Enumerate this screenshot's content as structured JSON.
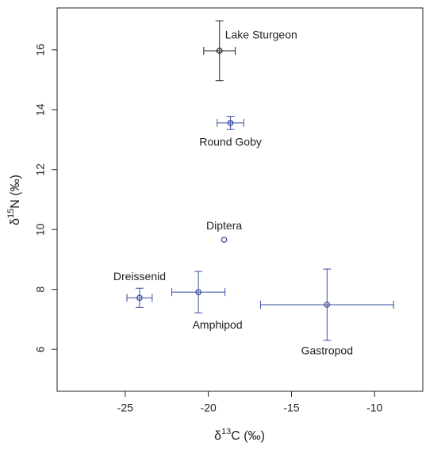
{
  "chart_data": {
    "type": "scatter",
    "x_label": [
      "δ",
      "13",
      "C (‰)"
    ],
    "y_label": [
      "δ",
      "15",
      "N (‰)"
    ],
    "xlim": [
      -29.1,
      -7.1
    ],
    "ylim": [
      4.6,
      17.4
    ],
    "xticks": [
      -25,
      -20,
      -15,
      -10
    ],
    "yticks": [
      6,
      8,
      10,
      12,
      14,
      16
    ],
    "points": [
      {
        "name": "Lake Sturgeon",
        "color": "#222222",
        "x": -19.33,
        "y": 15.97,
        "xerr": 0.95,
        "yerr": 1.0
      },
      {
        "name": "Round Goby",
        "color": "#3a4fa0",
        "x": -18.67,
        "y": 13.56,
        "xerr": 0.8,
        "yerr": 0.22
      },
      {
        "name": "Diptera",
        "color": "#3a4fa0",
        "x": -19.05,
        "y": 9.66,
        "xerr": null,
        "yerr": null
      },
      {
        "name": "Dreissenid",
        "color": "#3a4fa0",
        "x": -24.14,
        "y": 7.72,
        "xerr": 0.76,
        "yerr": 0.32
      },
      {
        "name": "Amphipod",
        "color": "#3a4fa0",
        "x": -20.6,
        "y": 7.91,
        "xerr": 1.6,
        "yerr": 0.69
      },
      {
        "name": "Gastropod",
        "color": "#3a4fa0",
        "x": -12.86,
        "y": 7.49,
        "xerr": 4.0,
        "yerr": 1.19
      }
    ]
  }
}
